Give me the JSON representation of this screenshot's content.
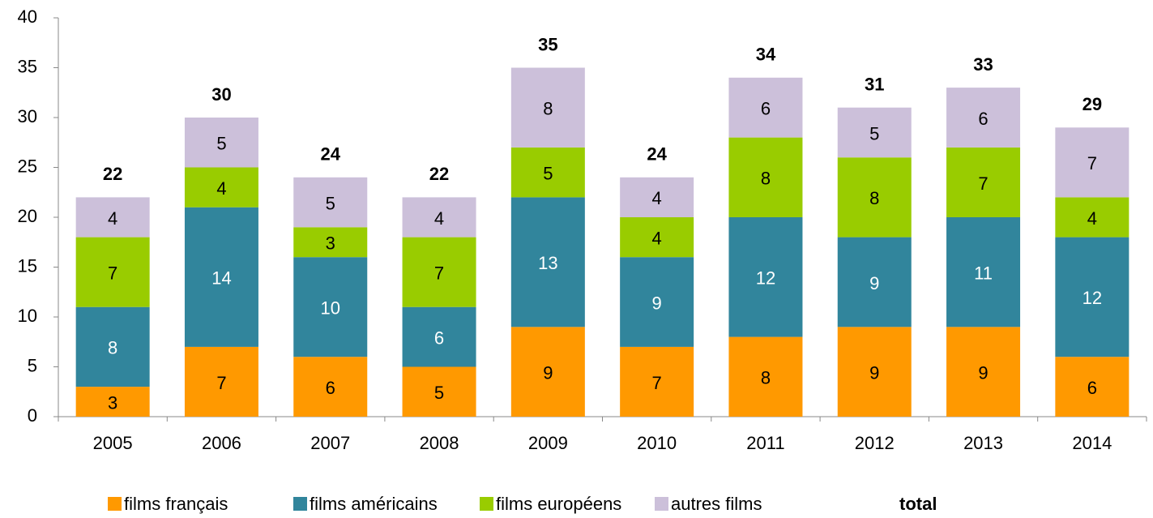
{
  "chart_data": {
    "type": "stacked_bar",
    "categories": [
      "2005",
      "2006",
      "2007",
      "2008",
      "2009",
      "2010",
      "2011",
      "2012",
      "2013",
      "2014"
    ],
    "series": [
      {
        "name": "films français",
        "color": "#ff9900",
        "label_color": "#000000",
        "values": [
          3,
          7,
          6,
          5,
          9,
          7,
          8,
          9,
          9,
          6
        ]
      },
      {
        "name": "films américains",
        "color": "#31859c",
        "label_color": "#ffffff",
        "values": [
          8,
          14,
          10,
          6,
          13,
          9,
          12,
          9,
          11,
          12
        ]
      },
      {
        "name": "films européens",
        "color": "#99cc00",
        "label_color": "#000000",
        "values": [
          7,
          4,
          3,
          7,
          5,
          4,
          8,
          8,
          7,
          4
        ]
      },
      {
        "name": "autres films",
        "color": "#ccc0da",
        "label_color": "#000000",
        "values": [
          4,
          5,
          5,
          4,
          8,
          4,
          6,
          5,
          6,
          7
        ]
      }
    ],
    "totals": {
      "name": "total",
      "values": [
        22,
        30,
        24,
        22,
        35,
        24,
        34,
        31,
        33,
        29
      ]
    },
    "ylim": [
      0,
      40
    ],
    "yticks": [
      0,
      5,
      10,
      15,
      20,
      25,
      30,
      35,
      40
    ],
    "grid": false,
    "legend": "bottom"
  }
}
